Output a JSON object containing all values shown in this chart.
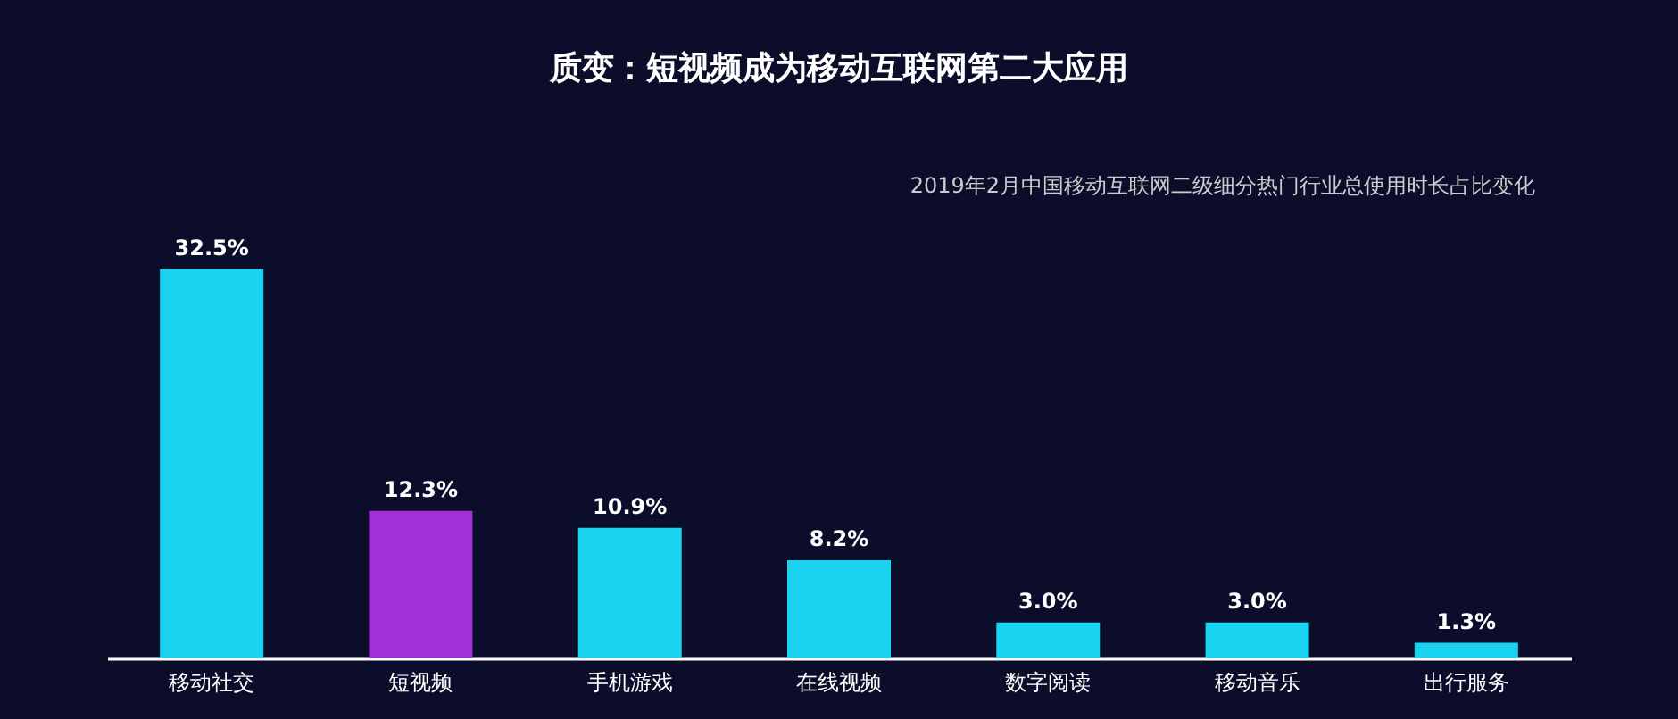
{
  "chart_data": {
    "type": "bar",
    "title": "质变：短视频成为移动互联网第二大应用",
    "subtitle": "2019年2月中国移动互联网二级细分热门行业总使用时长占比变化",
    "categories": [
      "移动社交",
      "短视频",
      "手机游戏",
      "在线视频",
      "数字阅读",
      "移动音乐",
      "出行服务"
    ],
    "values": [
      32.5,
      12.3,
      10.9,
      8.2,
      3.0,
      3.0,
      1.3
    ],
    "value_labels": [
      "32.5%",
      "12.3%",
      "10.9%",
      "8.2%",
      "3.0%",
      "3.0%",
      "1.3%"
    ],
    "colors": [
      "#19d3f0",
      "#a230d8",
      "#19d3f0",
      "#19d3f0",
      "#19d3f0",
      "#19d3f0",
      "#19d3f0"
    ]
  }
}
